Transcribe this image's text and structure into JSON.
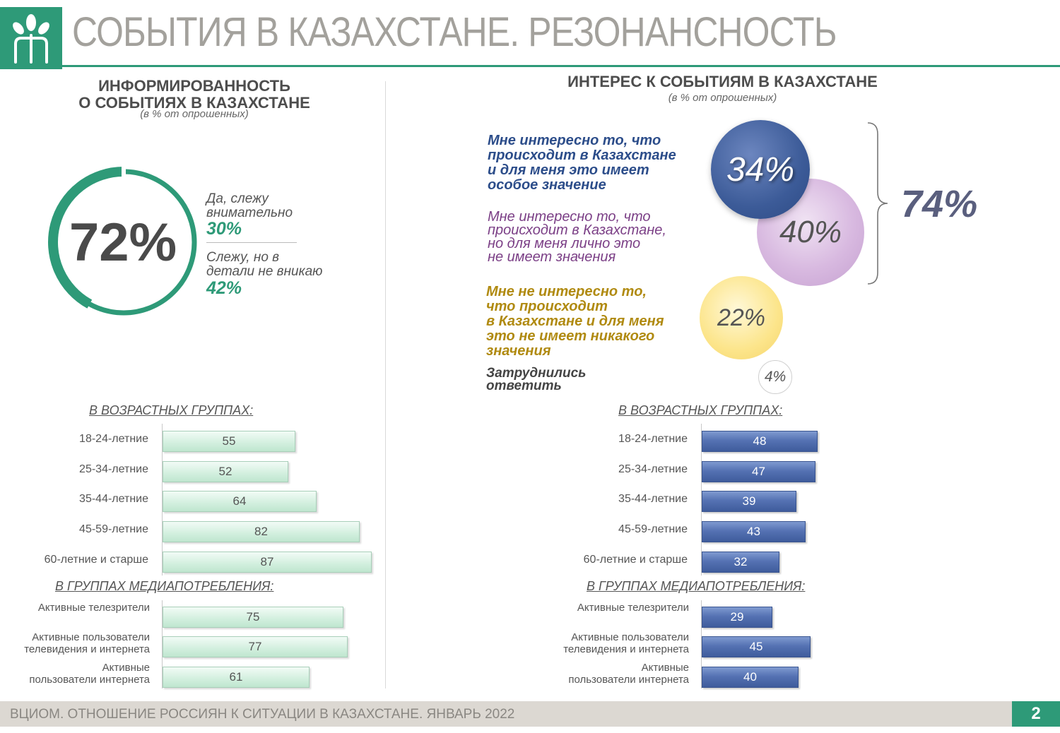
{
  "header": {
    "title": "СОБЫТИЯ В КАЗАХСТАНЕ. РЕЗОНАНСНОСТЬ"
  },
  "left": {
    "title_line1": "ИНФОРМИРОВАННОСТЬ",
    "title_line2": "О СОБЫТИЯХ В КАЗАХСТАНЕ",
    "subtitle": "(в % от опрошенных)",
    "total": "72%",
    "opt1_line1": "Да, слежу",
    "opt1_line2": "внимательно",
    "opt1_pct": "30%",
    "opt2_line1": "Слежу, но в",
    "opt2_line2": "детали не вникаю",
    "opt2_pct": "42%"
  },
  "right": {
    "title": "ИНТЕРЕС К СОБЫТИЯМ В КАЗАХСТАНЕ",
    "subtitle": "(в % от опрошенных)",
    "q1": [
      "Мне интересно то, что",
      "происходит в Казахстане",
      "и для меня это имеет",
      "особое значение"
    ],
    "q2": [
      "Мне интересно то, что",
      "происходит в Казахстане,",
      "но для меня лично это",
      "не имеет значения"
    ],
    "q3": [
      "Мне не интересно то,",
      "что происходит",
      "в Казахстане и для меня",
      "это не имеет никакого",
      "значения"
    ],
    "q4": [
      "Затруднились",
      "ответить"
    ],
    "total": "74%"
  },
  "groups": {
    "age_heading": "В ВОЗРАСТНЫХ ГРУППАХ:",
    "media_heading": "В ГРУППАХ МЕДИАПОТРЕБЛЕНИЯ:"
  },
  "colors": {
    "brand_green": "#2e9a78",
    "blue_bubble": "#3c5b98",
    "purple_bubble": "#d8b9e0",
    "yellow_bubble": "#fce58b",
    "q1_text": "#2c4d8a",
    "q2_text": "#7b3f86",
    "q3_text": "#b08a10"
  },
  "footer": {
    "text": "ВЦИОМ. ОТНОШЕНИЕ РОССИЯН К СИТУАЦИИ В КАЗАХСТАНЕ. ЯНВАРЬ 2022",
    "page": "2"
  },
  "chart_data": [
    {
      "type": "pie",
      "title": "ИНФОРМИРОВАННОСТЬ О СОБЫТИЯХ В КАЗАХСТАНЕ",
      "subtitle": "(в % от опрошенных)",
      "total": 72,
      "slices": [
        {
          "label": "Да, слежу внимательно",
          "value": 30
        },
        {
          "label": "Слежу, но в детали не вникаю",
          "value": 42
        }
      ]
    },
    {
      "type": "bubble",
      "title": "ИНТЕРЕС К СОБЫТИЯМ В КАЗАХСТАНЕ",
      "subtitle": "(в % от опрошенных)",
      "values": [
        {
          "label": "Мне интересно то, что происходит в Казахстане и для меня это имеет особое значение",
          "value": 34
        },
        {
          "label": "Мне интересно то, что происходит в Казахстане, но для меня лично это не имеет значения",
          "value": 40
        },
        {
          "label": "Мне не интересно то, что происходит в Казахстане и для меня это не имеет никакого значения",
          "value": 22
        },
        {
          "label": "Затруднились ответить",
          "value": 4
        }
      ],
      "bracket_total": 74
    },
    {
      "type": "bar",
      "orientation": "horizontal",
      "title": "В ВОЗРАСТНЫХ ГРУППАХ:",
      "categories": [
        "18-24-летние",
        "25-34-летние",
        "35-44-летние",
        "45-59-летние",
        "60-летние и старше"
      ],
      "values": [
        55,
        52,
        64,
        82,
        87
      ]
    },
    {
      "type": "bar",
      "orientation": "horizontal",
      "title": "В ГРУППАХ МЕДИАПОТРЕБЛЕНИЯ:",
      "categories": [
        "Активные телезрители",
        "Активные пользователи телевидения и интернета",
        "Активные пользователи интернета"
      ],
      "values": [
        75,
        77,
        61
      ]
    },
    {
      "type": "bar",
      "orientation": "horizontal",
      "title": "В ВОЗРАСТНЫХ ГРУППАХ:",
      "categories": [
        "18-24-летние",
        "25-34-летние",
        "35-44-летние",
        "45-59-летние",
        "60-летние и старше"
      ],
      "values": [
        48,
        47,
        39,
        43,
        32
      ]
    },
    {
      "type": "bar",
      "orientation": "horizontal",
      "title": "В ГРУППАХ МЕДИАПОТРЕБЛЕНИЯ:",
      "categories": [
        "Активные телезрители",
        "Активные пользователи телевидения и интернета",
        "Активные пользователи интернета"
      ],
      "values": [
        29,
        45,
        40
      ]
    }
  ]
}
